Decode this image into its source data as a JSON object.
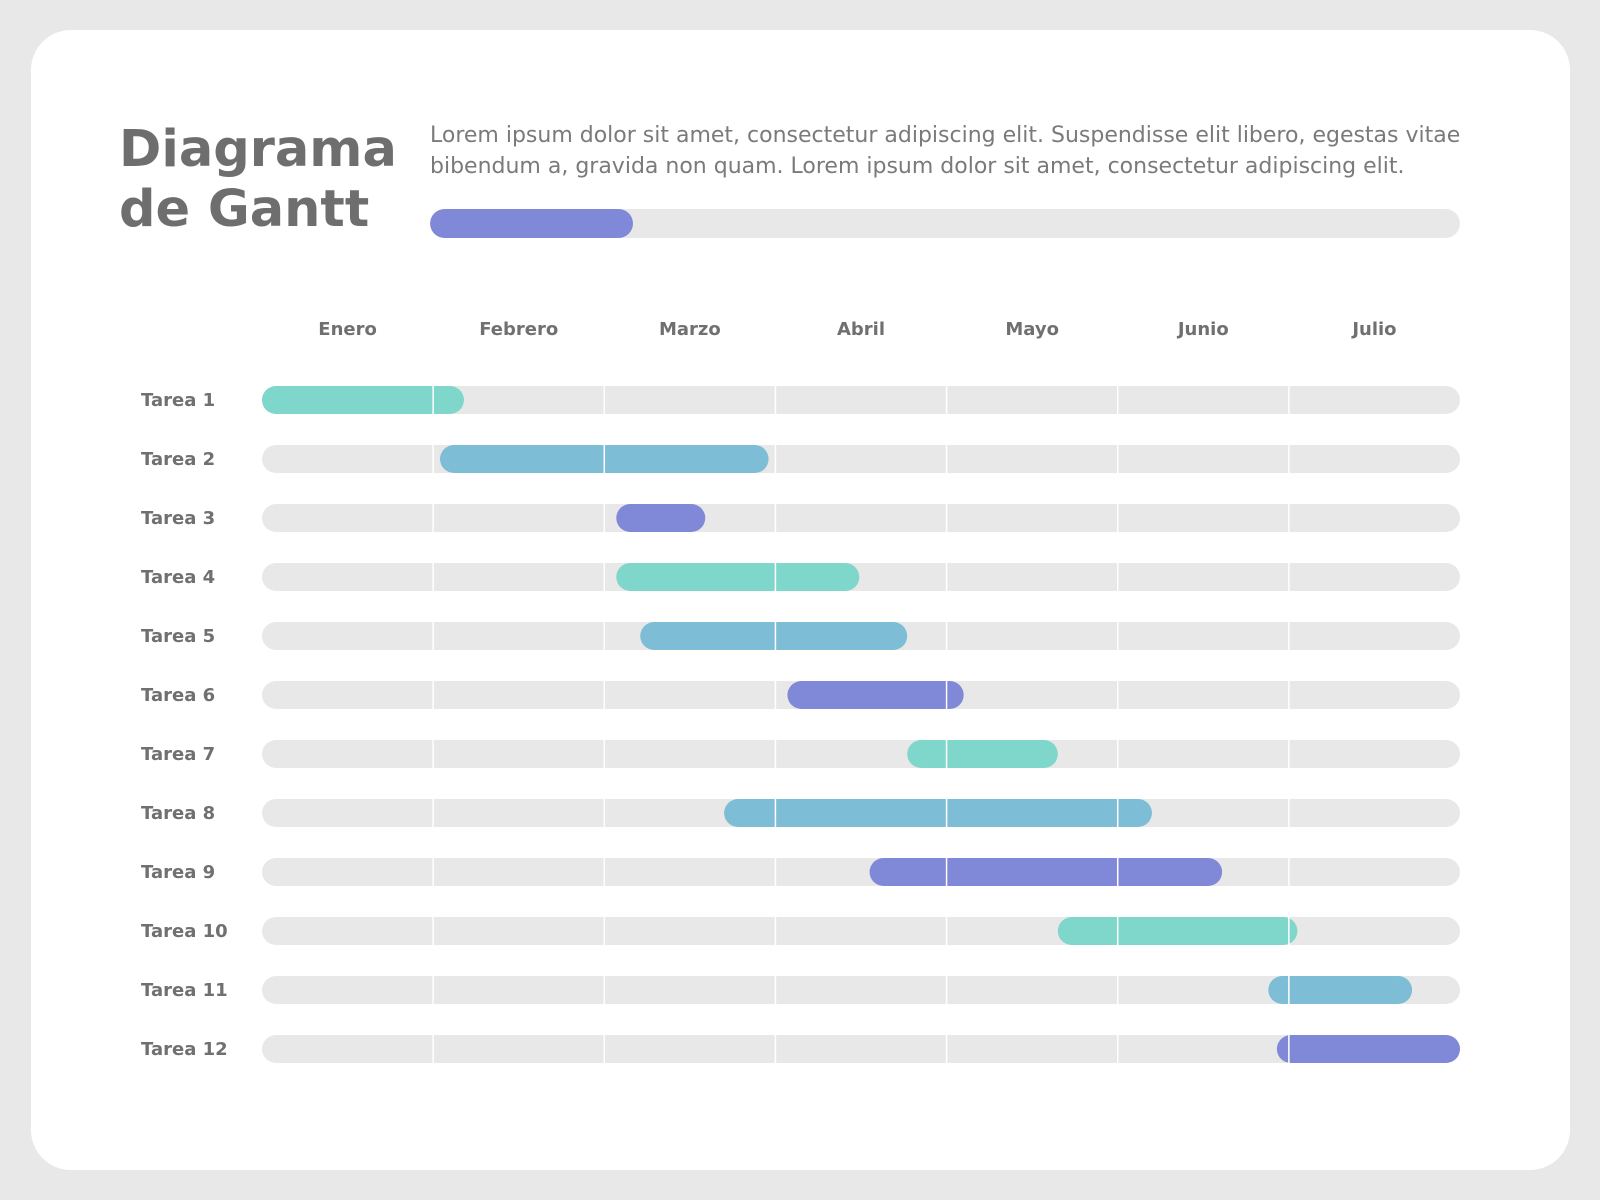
{
  "header": {
    "title_line1": "Diagrama",
    "title_line2": "de Gantt",
    "description": "Lorem ipsum dolor sit amet, consectetur adipiscing elit. Suspendisse elit libero, egestas vitae bibendum a, gravida non quam. Lorem ipsum dolor sit amet, consectetur adipiscing elit.",
    "progress_fraction": 0.197
  },
  "colors": {
    "page_background": "#e8e8e8",
    "card_background": "#ffffff",
    "track": "#e8e8e8",
    "grid_line": "#ffffff",
    "text": "#707070",
    "teal": "#7fd6cb",
    "blue": "#7ebdd6",
    "purple": "#8088d8"
  },
  "chart_data": {
    "type": "gantt",
    "title": "Diagrama de Gantt",
    "months": [
      "Enero",
      "Febrero",
      "Marzo",
      "Abril",
      "Mayo",
      "Junio",
      "Julio"
    ],
    "x_unit": "months",
    "x_range": [
      0,
      7
    ],
    "grid": true,
    "tasks": [
      {
        "name": "Tarea 1",
        "start": 0.0,
        "end": 1.18,
        "color": "teal"
      },
      {
        "name": "Tarea 2",
        "start": 1.04,
        "end": 2.96,
        "color": "blue"
      },
      {
        "name": "Tarea 3",
        "start": 2.07,
        "end": 2.59,
        "color": "purple"
      },
      {
        "name": "Tarea 4",
        "start": 2.07,
        "end": 3.49,
        "color": "teal"
      },
      {
        "name": "Tarea 5",
        "start": 2.21,
        "end": 3.77,
        "color": "blue"
      },
      {
        "name": "Tarea 6",
        "start": 3.07,
        "end": 4.1,
        "color": "purple"
      },
      {
        "name": "Tarea 7",
        "start": 3.77,
        "end": 4.65,
        "color": "teal"
      },
      {
        "name": "Tarea 8",
        "start": 2.7,
        "end": 5.2,
        "color": "blue"
      },
      {
        "name": "Tarea 9",
        "start": 3.55,
        "end": 5.61,
        "color": "purple"
      },
      {
        "name": "Tarea 10",
        "start": 4.65,
        "end": 6.05,
        "color": "teal"
      },
      {
        "name": "Tarea 11",
        "start": 5.88,
        "end": 6.72,
        "color": "blue"
      },
      {
        "name": "Tarea 12",
        "start": 5.93,
        "end": 7.0,
        "color": "purple"
      }
    ]
  }
}
